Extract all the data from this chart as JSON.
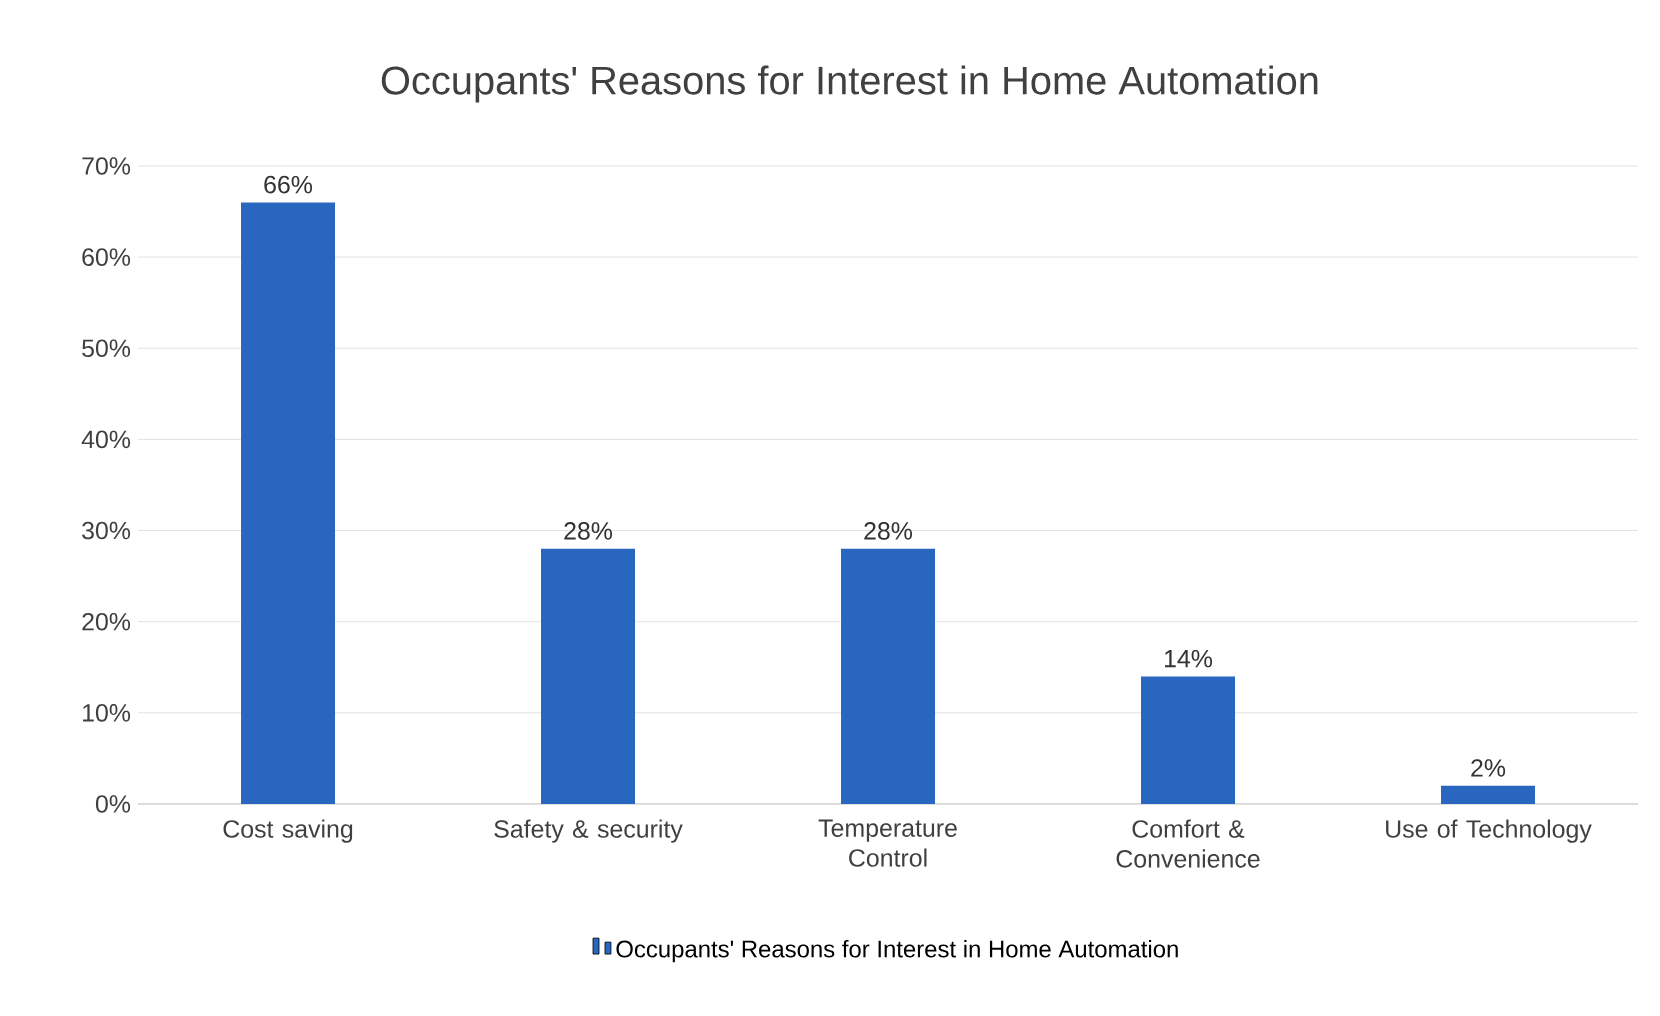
{
  "chart_data": {
    "type": "bar",
    "title": "Occupants' Reasons for Interest in Home Automation",
    "categories": [
      "Cost saving",
      "Safety & security",
      "Temperature Control",
      "Comfort & Convenience",
      "Use of Technology"
    ],
    "series": [
      {
        "name": "Occupants' Reasons for Interest in Home Automation",
        "color": "#2866c0",
        "values": [
          66,
          28,
          28,
          14,
          2
        ],
        "value_labels": [
          "66%",
          "28%",
          "28%",
          "14%",
          "2%"
        ]
      }
    ],
    "ylim": [
      0,
      70
    ],
    "yticks": [
      {
        "value": 0,
        "label": "0%"
      },
      {
        "value": 10,
        "label": "10%"
      },
      {
        "value": 20,
        "label": "20%"
      },
      {
        "value": 30,
        "label": "30%"
      },
      {
        "value": 40,
        "label": "40%"
      },
      {
        "value": 50,
        "label": "50%"
      },
      {
        "value": 60,
        "label": "60%"
      },
      {
        "value": 70,
        "label": "70%"
      }
    ],
    "grid": "y",
    "legend": "bottom"
  }
}
